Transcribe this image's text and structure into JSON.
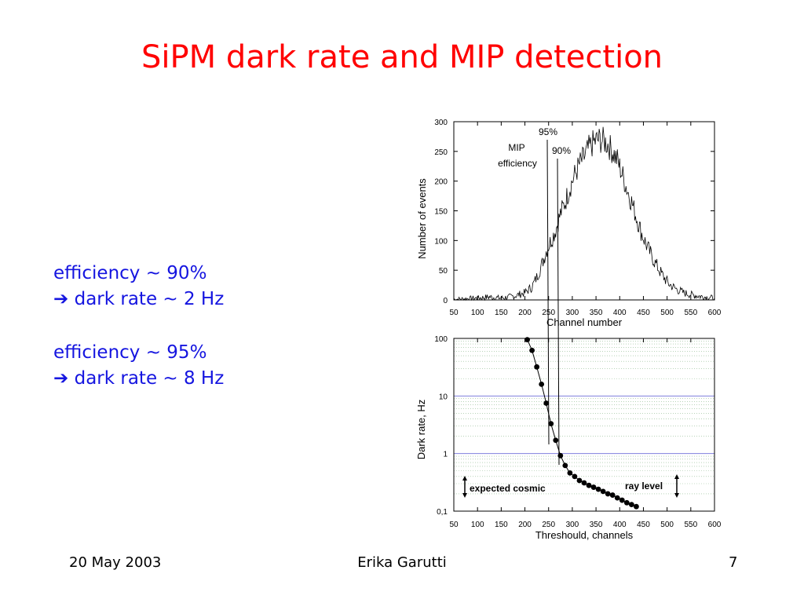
{
  "slide": {
    "title": "SiPM dark rate and MIP detection",
    "bullets": [
      {
        "text": "efficiency ~ 90%",
        "arrow_text": "dark rate  ~ 2 Hz"
      },
      {
        "text": "efficiency ~ 95%",
        "arrow_text": "dark rate  ~ 8 Hz"
      }
    ],
    "arrow_symbol": "➔",
    "footer": {
      "date": "20 May 2003",
      "author": "Erika Garutti",
      "page": "7"
    },
    "colors": {
      "title": "#ff0000",
      "bullets": "#1515e0",
      "gridline_blue": "#7f7fdd"
    }
  },
  "chart_data": [
    {
      "type": "line",
      "xlabel": "Channel number",
      "ylabel": "Number of events",
      "xlim": [
        50,
        600
      ],
      "ylim": [
        0,
        300
      ],
      "xticks": [
        50,
        100,
        150,
        200,
        250,
        300,
        350,
        400,
        450,
        500,
        550,
        600
      ],
      "yticks": [
        0,
        50,
        100,
        150,
        200,
        250,
        300
      ],
      "grid": false,
      "series": [
        {
          "x": [
            50,
            75,
            100,
            125,
            150,
            175,
            200,
            215,
            225,
            235,
            245,
            255,
            265,
            275,
            285,
            295,
            305,
            315,
            325,
            335,
            345,
            355,
            365,
            375,
            385,
            395,
            405,
            415,
            425,
            435,
            445,
            455,
            465,
            475,
            485,
            495,
            505,
            520,
            535,
            550,
            570,
            590,
            600
          ],
          "values": [
            1,
            2,
            3,
            5,
            3,
            6,
            12,
            22,
            38,
            58,
            82,
            100,
            118,
            145,
            165,
            190,
            210,
            228,
            240,
            255,
            265,
            270,
            268,
            262,
            250,
            235,
            212,
            188,
            165,
            140,
            115,
            95,
            78,
            62,
            48,
            36,
            26,
            18,
            12,
            9,
            6,
            4,
            3
          ]
        }
      ],
      "annotations": [
        {
          "text": "95%",
          "x": 255
        },
        {
          "text": "90%",
          "x": 275
        },
        {
          "text": "MIP",
          "x": 232
        },
        {
          "text": "efficiency",
          "x": 232
        }
      ]
    },
    {
      "type": "scatter",
      "xlabel": "Threshould, channels",
      "ylabel": "Dark rate, Hz",
      "xlim": [
        50,
        600
      ],
      "ylim": [
        0.1,
        100
      ],
      "yscale": "log",
      "xticks": [
        50,
        100,
        150,
        200,
        250,
        300,
        350,
        400,
        450,
        500,
        550,
        600
      ],
      "yticks": [
        0.1,
        1,
        10,
        100
      ],
      "ytick_labels": [
        "0,1",
        "1",
        "10",
        "100"
      ],
      "grid": true,
      "series": [
        {
          "x": [
            205,
            215,
            225,
            235,
            245,
            255,
            265,
            275,
            285,
            295,
            305,
            315,
            325,
            335,
            345,
            355,
            365,
            375,
            385,
            395,
            405,
            415,
            425,
            435
          ],
          "values": [
            95,
            62,
            32,
            16,
            7.5,
            3.3,
            1.7,
            0.92,
            0.62,
            0.46,
            0.4,
            0.34,
            0.31,
            0.28,
            0.26,
            0.24,
            0.22,
            0.2,
            0.19,
            0.17,
            0.155,
            0.14,
            0.13,
            0.12
          ]
        }
      ],
      "annotations": [
        {
          "text": "expected cosmic"
        },
        {
          "text": "ray level"
        }
      ]
    }
  ]
}
